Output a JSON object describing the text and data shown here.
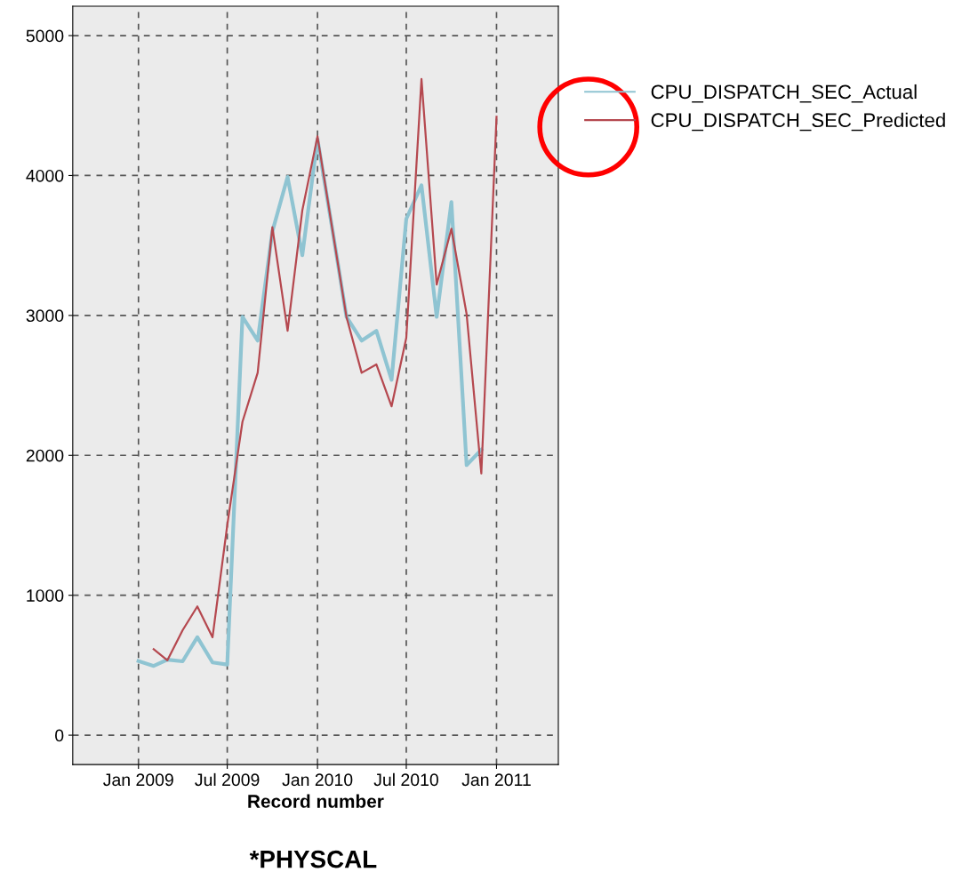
{
  "chart_data": {
    "type": "line",
    "xlabel": "Record number",
    "annotations": [
      "*PHYSCAL"
    ],
    "x": [
      "2009-01",
      "2009-02",
      "2009-03",
      "2009-04",
      "2009-05",
      "2009-06",
      "2009-07",
      "2009-08",
      "2009-09",
      "2009-10",
      "2009-11",
      "2009-12",
      "2010-01",
      "2010-02",
      "2010-03",
      "2010-04",
      "2010-05",
      "2010-06",
      "2010-07",
      "2010-08",
      "2010-09",
      "2010-10",
      "2010-11",
      "2010-12",
      "2011-01"
    ],
    "series": [
      {
        "name": "CPU_DISPATCH_SEC_Actual",
        "color": "#8fc4d2",
        "values": [
          530,
          495,
          540,
          528,
          700,
          520,
          505,
          2990,
          2820,
          3600,
          3990,
          3430,
          4260,
          3600,
          2990,
          2820,
          2890,
          2540,
          3690,
          3930,
          2990,
          3810,
          1930,
          2040,
          null
        ]
      },
      {
        "name": "CPU_DISPATCH_SEC_Predicted",
        "color": "#b5484f",
        "values": [
          null,
          615,
          535,
          750,
          920,
          700,
          1500,
          2240,
          2590,
          3630,
          2890,
          3750,
          4280,
          3600,
          2990,
          2590,
          2650,
          2350,
          2840,
          4690,
          3220,
          3620,
          3010,
          1870,
          4420
        ]
      }
    ],
    "xlim": [
      "2008-08-20",
      "2011-05-07"
    ],
    "xticks": [
      {
        "value": "2009-01",
        "label": "Jan 2009"
      },
      {
        "value": "2009-07",
        "label": "Jul 2009"
      },
      {
        "value": "2010-01",
        "label": "Jan 2010"
      },
      {
        "value": "2010-07",
        "label": "Jul 2010"
      },
      {
        "value": "2011-01",
        "label": "Jan 2011"
      }
    ],
    "ylim": [
      -210,
      5210
    ],
    "yticks": [
      0,
      1000,
      2000,
      3000,
      4000,
      5000
    ],
    "grid": true,
    "legend": "right",
    "line_style": "solid",
    "marker": "none"
  }
}
